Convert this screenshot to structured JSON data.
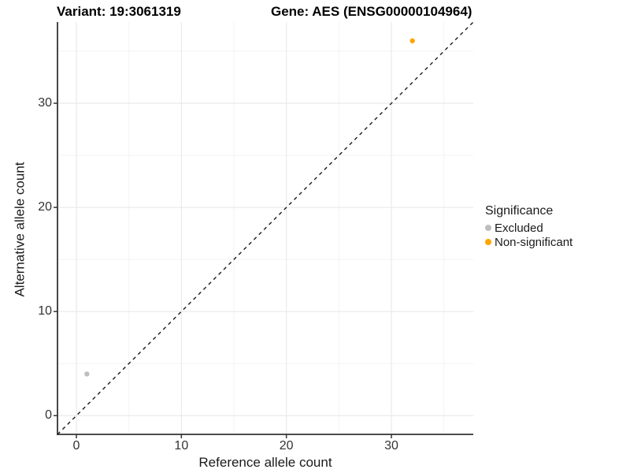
{
  "chart_data": {
    "type": "scatter",
    "title_left": "Variant: 19:3061319",
    "title_right": "Gene: AES (ENSG00000104964)",
    "xlabel": "Reference allele count",
    "ylabel": "Alternative allele count",
    "xlim": [
      -1.8,
      37.8
    ],
    "ylim": [
      -1.8,
      37.8
    ],
    "xticks": [
      0,
      10,
      20,
      30
    ],
    "yticks": [
      0,
      10,
      20,
      30
    ],
    "xticks_minor": [
      5,
      15,
      25,
      35
    ],
    "yticks_minor": [
      5,
      15,
      25,
      35
    ],
    "grid": "major+minor",
    "reference_line": {
      "type": "identity y=x",
      "style": "dashed",
      "color": "#1a1a1a"
    },
    "legend": {
      "title": "Significance",
      "position": "right"
    },
    "series": [
      {
        "name": "Excluded",
        "color": "#bebebe",
        "points": [
          [
            1,
            4
          ]
        ]
      },
      {
        "name": "Non-significant",
        "color": "#ffa500",
        "points": [
          [
            32,
            36
          ]
        ]
      }
    ],
    "colors": {
      "grid_major": "#e6e6e6",
      "grid_minor": "#f3f3f3",
      "axis_line": "#333333",
      "tick": "#333333"
    }
  }
}
